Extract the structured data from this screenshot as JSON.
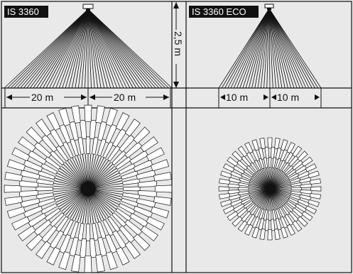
{
  "left_panel": {
    "model_label": "IS 3360",
    "range_left": "20 m",
    "range_right": "20 m"
  },
  "right_panel": {
    "model_label": "IS 3360 ECO",
    "range_left": "10 m",
    "range_right": "10 m"
  },
  "mounting_height": "2,5 m",
  "colors": {
    "background": "#e9e9e9",
    "line": "#111111",
    "label_bg": "#111111",
    "label_text": "#ffffff",
    "segment_fill": "#ffffff"
  }
}
